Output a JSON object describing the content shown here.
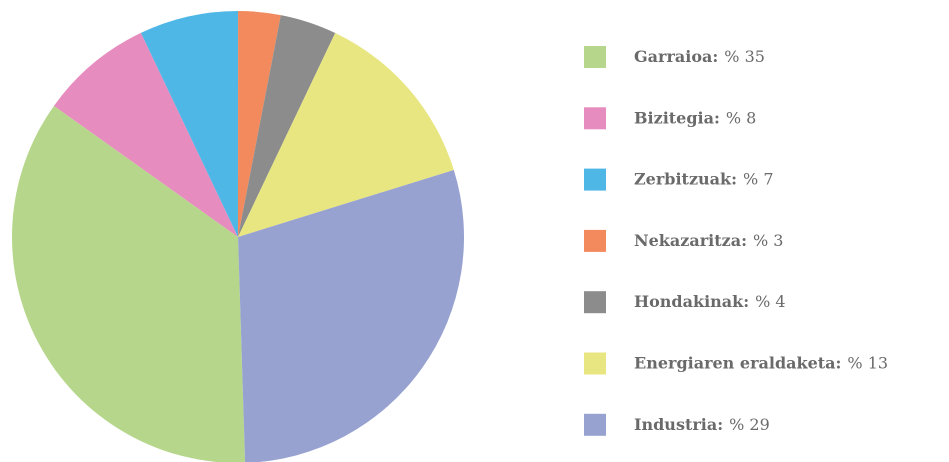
{
  "chart_data": {
    "type": "pie",
    "categories": [
      "Garraioa:",
      "Bizitegia:",
      "Zerbitzuak:",
      "Nekazaritza:",
      "Hondakinak:",
      "Energiaren eraldaketa:",
      "Industria:"
    ],
    "values": [
      35,
      8,
      7,
      3,
      4,
      13,
      29
    ],
    "value_labels": [
      "% 35",
      "% 8",
      "% 7",
      "% 3",
      "% 4",
      "% 13",
      "% 29"
    ],
    "colors": [
      "#b6d78b",
      "#e68cbf",
      "#4fb7e6",
      "#f28a5e",
      "#8c8c8c",
      "#e8e681",
      "#97a2d1"
    ],
    "legend": "right"
  }
}
